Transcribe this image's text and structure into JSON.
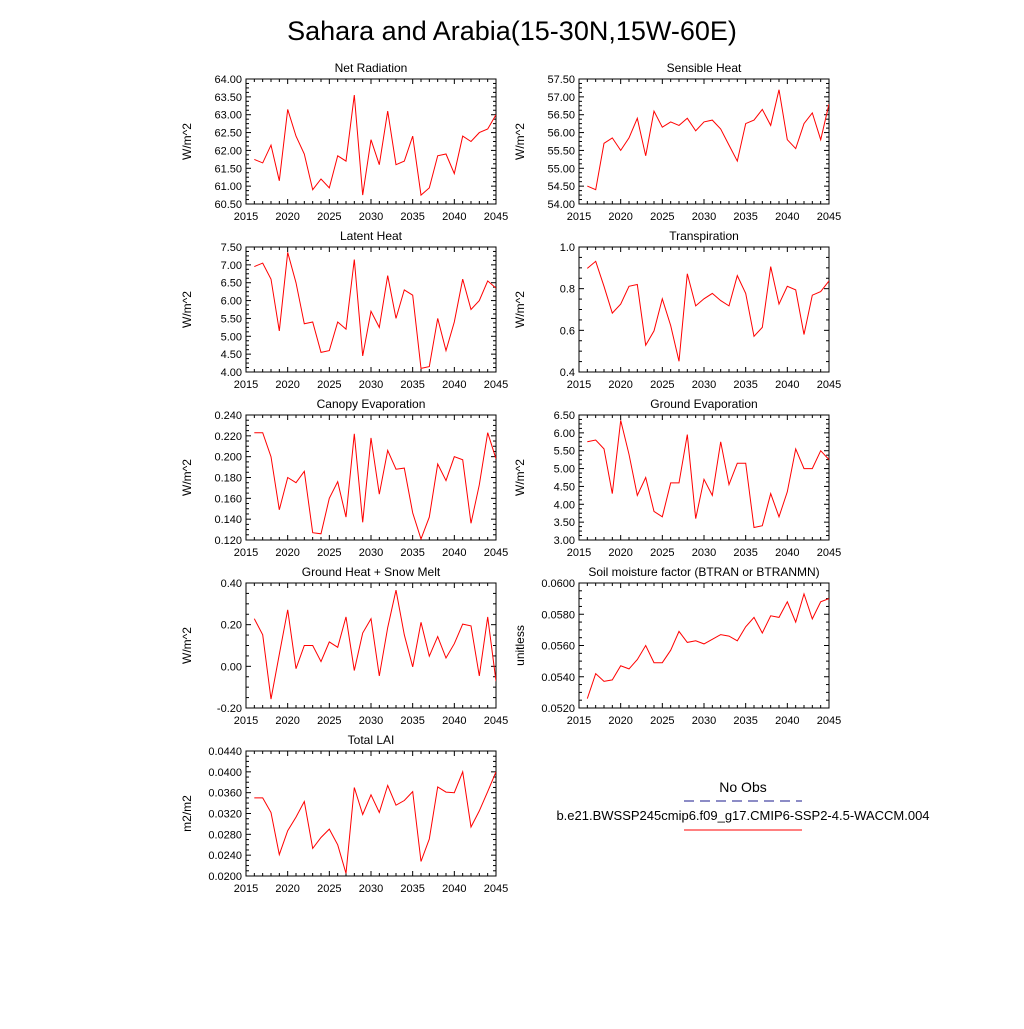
{
  "figure": {
    "title": "Sahara and Arabia(15-30N,15W-60E)",
    "line_color": "#ff0000",
    "obs_color": "#1a1a8c"
  },
  "legend": {
    "obs_label": "No Obs",
    "model_label": "b.e21.BWSSP245cmip6.f09_g17.CMIP6-SSP2-4.5-WACCM.004"
  },
  "chart_data": [
    {
      "type": "line",
      "title": "Net Radiation",
      "ylabel": "W/m^2",
      "xlim": [
        2015,
        2045
      ],
      "ylim": [
        60.5,
        64.0
      ],
      "xticks": [
        2015,
        2020,
        2025,
        2030,
        2035,
        2040,
        2045
      ],
      "yticks": [
        "60.50",
        "61.00",
        "61.50",
        "62.00",
        "62.50",
        "63.00",
        "63.50",
        "64.00"
      ],
      "x": [
        2016,
        2017,
        2018,
        2019,
        2020,
        2021,
        2022,
        2023,
        2024,
        2025,
        2026,
        2027,
        2028,
        2029,
        2030,
        2031,
        2032,
        2033,
        2034,
        2035,
        2036,
        2037,
        2038,
        2039,
        2040,
        2041,
        2042,
        2043,
        2044,
        2045
      ],
      "series": [
        {
          "values": [
            61.75,
            61.65,
            62.15,
            61.15,
            63.15,
            62.4,
            61.9,
            60.9,
            61.2,
            60.95,
            61.85,
            61.7,
            63.55,
            60.75,
            62.3,
            61.6,
            63.1,
            61.6,
            61.7,
            62.4,
            60.75,
            60.95,
            61.85,
            61.9,
            61.35,
            62.4,
            62.25,
            62.5,
            62.6,
            63.0
          ]
        }
      ]
    },
    {
      "type": "line",
      "title": "Sensible Heat",
      "ylabel": "W/m^2",
      "xlim": [
        2015,
        2045
      ],
      "ylim": [
        54.0,
        57.5
      ],
      "xticks": [
        2015,
        2020,
        2025,
        2030,
        2035,
        2040,
        2045
      ],
      "yticks": [
        "54.00",
        "54.50",
        "55.00",
        "55.50",
        "56.00",
        "56.50",
        "57.00",
        "57.50"
      ],
      "x": [
        2016,
        2017,
        2018,
        2019,
        2020,
        2021,
        2022,
        2023,
        2024,
        2025,
        2026,
        2027,
        2028,
        2029,
        2030,
        2031,
        2032,
        2033,
        2034,
        2035,
        2036,
        2037,
        2038,
        2039,
        2040,
        2041,
        2042,
        2043,
        2044,
        2045
      ],
      "series": [
        {
          "values": [
            54.5,
            54.4,
            55.7,
            55.85,
            55.5,
            55.85,
            56.4,
            55.35,
            56.6,
            56.15,
            56.3,
            56.2,
            56.4,
            56.05,
            56.3,
            56.35,
            56.1,
            55.65,
            55.2,
            56.25,
            56.35,
            56.65,
            56.2,
            57.2,
            55.8,
            55.55,
            56.25,
            56.55,
            55.8,
            56.8
          ]
        }
      ]
    },
    {
      "type": "line",
      "title": "Latent Heat",
      "ylabel": "W/m^2",
      "xlim": [
        2015,
        2045
      ],
      "ylim": [
        4.0,
        7.5
      ],
      "xticks": [
        2015,
        2020,
        2025,
        2030,
        2035,
        2040,
        2045
      ],
      "yticks": [
        "4.00",
        "4.50",
        "5.00",
        "5.50",
        "6.00",
        "6.50",
        "7.00",
        "7.50"
      ],
      "x": [
        2016,
        2017,
        2018,
        2019,
        2020,
        2021,
        2022,
        2023,
        2024,
        2025,
        2026,
        2027,
        2028,
        2029,
        2030,
        2031,
        2032,
        2033,
        2034,
        2035,
        2036,
        2037,
        2038,
        2039,
        2040,
        2041,
        2042,
        2043,
        2044,
        2045
      ],
      "series": [
        {
          "values": [
            6.95,
            7.05,
            6.6,
            5.15,
            7.35,
            6.5,
            5.35,
            5.4,
            4.55,
            4.6,
            5.4,
            5.2,
            7.15,
            4.45,
            5.7,
            5.25,
            6.7,
            5.5,
            6.3,
            6.15,
            4.1,
            4.15,
            5.5,
            4.6,
            5.4,
            6.6,
            5.75,
            6.0,
            6.55,
            6.35
          ]
        }
      ]
    },
    {
      "type": "line",
      "title": "Transpiration",
      "ylabel": "W/m^2",
      "xlim": [
        2015,
        2045
      ],
      "ylim": [
        0.4,
        1.1
      ],
      "xticks": [
        2015,
        2020,
        2025,
        2030,
        2035,
        2040,
        2045
      ],
      "yticks": [
        "0.4",
        "0.6",
        "0.8",
        "1.0"
      ],
      "x": [
        2016,
        2017,
        2018,
        2019,
        2020,
        2021,
        2022,
        2023,
        2024,
        2025,
        2026,
        2027,
        2028,
        2029,
        2030,
        2031,
        2032,
        2033,
        2034,
        2035,
        2036,
        2037,
        2038,
        2039,
        2040,
        2041,
        2042,
        2043,
        2044,
        2045
      ],
      "series": [
        {
          "values": [
            0.98,
            1.02,
            0.88,
            0.73,
            0.78,
            0.88,
            0.89,
            0.55,
            0.63,
            0.81,
            0.66,
            0.46,
            0.95,
            0.77,
            0.81,
            0.84,
            0.8,
            0.77,
            0.94,
            0.84,
            0.6,
            0.65,
            0.99,
            0.78,
            0.88,
            0.86,
            0.61,
            0.83,
            0.85,
            0.91
          ]
        }
      ]
    },
    {
      "type": "line",
      "title": "Canopy Evaporation",
      "ylabel": "W/m^2",
      "xlim": [
        2015,
        2045
      ],
      "ylim": [
        0.12,
        0.24
      ],
      "xticks": [
        2015,
        2020,
        2025,
        2030,
        2035,
        2040,
        2045
      ],
      "yticks": [
        "0.120",
        "0.140",
        "0.160",
        "0.180",
        "0.200",
        "0.220",
        "0.240"
      ],
      "x": [
        2016,
        2017,
        2018,
        2019,
        2020,
        2021,
        2022,
        2023,
        2024,
        2025,
        2026,
        2027,
        2028,
        2029,
        2030,
        2031,
        2032,
        2033,
        2034,
        2035,
        2036,
        2037,
        2038,
        2039,
        2040,
        2041,
        2042,
        2043,
        2044,
        2045
      ],
      "series": [
        {
          "values": [
            0.223,
            0.223,
            0.2,
            0.149,
            0.18,
            0.175,
            0.186,
            0.127,
            0.126,
            0.16,
            0.176,
            0.142,
            0.222,
            0.137,
            0.218,
            0.164,
            0.206,
            0.188,
            0.189,
            0.146,
            0.121,
            0.142,
            0.193,
            0.177,
            0.2,
            0.197,
            0.136,
            0.173,
            0.223,
            0.198
          ]
        }
      ]
    },
    {
      "type": "line",
      "title": "Ground Evaporation",
      "ylabel": "W/m^2",
      "xlim": [
        2015,
        2045
      ],
      "ylim": [
        3.0,
        6.5
      ],
      "xticks": [
        2015,
        2020,
        2025,
        2030,
        2035,
        2040,
        2045
      ],
      "yticks": [
        "3.00",
        "3.50",
        "4.00",
        "4.50",
        "5.00",
        "5.50",
        "6.00",
        "6.50"
      ],
      "x": [
        2016,
        2017,
        2018,
        2019,
        2020,
        2021,
        2022,
        2023,
        2024,
        2025,
        2026,
        2027,
        2028,
        2029,
        2030,
        2031,
        2032,
        2033,
        2034,
        2035,
        2036,
        2037,
        2038,
        2039,
        2040,
        2041,
        2042,
        2043,
        2044,
        2045
      ],
      "series": [
        {
          "values": [
            5.75,
            5.8,
            5.55,
            4.3,
            6.35,
            5.4,
            4.25,
            4.75,
            3.8,
            3.65,
            4.6,
            4.6,
            5.95,
            3.6,
            4.7,
            4.25,
            5.75,
            4.55,
            5.15,
            5.15,
            3.35,
            3.4,
            4.3,
            3.65,
            4.35,
            5.55,
            5.0,
            5.0,
            5.5,
            5.25
          ]
        }
      ]
    },
    {
      "type": "line",
      "title": "Ground Heat + Snow Melt",
      "ylabel": "W/m^2",
      "xlim": [
        2015,
        2045
      ],
      "ylim": [
        -0.2,
        0.5
      ],
      "xticks": [
        2015,
        2020,
        2025,
        2030,
        2035,
        2040,
        2045
      ],
      "yticks": [
        "-0.20",
        "0.00",
        "0.20",
        "0.40"
      ],
      "x": [
        2016,
        2017,
        2018,
        2019,
        2020,
        2021,
        2022,
        2023,
        2024,
        2025,
        2026,
        2027,
        2028,
        2029,
        2030,
        2031,
        2032,
        2033,
        2034,
        2035,
        2036,
        2037,
        2038,
        2039,
        2040,
        2041,
        2042,
        2043,
        2044,
        2045
      ],
      "series": [
        {
          "values": [
            0.3,
            0.21,
            -0.15,
            0.1,
            0.35,
            0.02,
            0.15,
            0.15,
            0.06,
            0.17,
            0.14,
            0.31,
            0.01,
            0.22,
            0.3,
            -0.02,
            0.25,
            0.46,
            0.21,
            0.03,
            0.28,
            0.09,
            0.2,
            0.08,
            0.16,
            0.27,
            0.26,
            -0.02,
            0.31,
            -0.05
          ]
        }
      ]
    },
    {
      "type": "line",
      "title": "Soil moisture factor (BTRAN or BTRANMN)",
      "ylabel": "unitless",
      "xlim": [
        2015,
        2045
      ],
      "ylim": [
        0.052,
        0.06
      ],
      "xticks": [
        2015,
        2020,
        2025,
        2030,
        2035,
        2040,
        2045
      ],
      "yticks": [
        "0.0520",
        "0.0540",
        "0.0560",
        "0.0580",
        "0.0600"
      ],
      "x": [
        2016,
        2017,
        2018,
        2019,
        2020,
        2021,
        2022,
        2023,
        2024,
        2025,
        2026,
        2027,
        2028,
        2029,
        2030,
        2031,
        2032,
        2033,
        2034,
        2035,
        2036,
        2037,
        2038,
        2039,
        2040,
        2041,
        2042,
        2043,
        2044,
        2045
      ],
      "series": [
        {
          "values": [
            0.0526,
            0.0542,
            0.0537,
            0.0538,
            0.0547,
            0.0545,
            0.0551,
            0.056,
            0.0549,
            0.0549,
            0.0557,
            0.0569,
            0.0562,
            0.0563,
            0.0561,
            0.0564,
            0.0567,
            0.0566,
            0.0563,
            0.0572,
            0.0578,
            0.0568,
            0.0579,
            0.0578,
            0.0588,
            0.0575,
            0.0593,
            0.0577,
            0.0588,
            0.059
          ]
        }
      ]
    },
    {
      "type": "line",
      "title": "Total LAI",
      "ylabel": "m2/m2",
      "xlim": [
        2015,
        2045
      ],
      "ylim": [
        0.02,
        0.044
      ],
      "xticks": [
        2015,
        2020,
        2025,
        2030,
        2035,
        2040,
        2045
      ],
      "yticks": [
        "0.0200",
        "0.0240",
        "0.0280",
        "0.0320",
        "0.0360",
        "0.0400",
        "0.0440"
      ],
      "x": [
        2016,
        2017,
        2018,
        2019,
        2020,
        2021,
        2022,
        2023,
        2024,
        2025,
        2026,
        2027,
        2028,
        2029,
        2030,
        2031,
        2032,
        2033,
        2034,
        2035,
        2036,
        2037,
        2038,
        2039,
        2040,
        2041,
        2042,
        2043,
        2044,
        2045
      ],
      "series": [
        {
          "values": [
            0.035,
            0.035,
            0.0322,
            0.0241,
            0.0287,
            0.0313,
            0.0343,
            0.0253,
            0.0274,
            0.029,
            0.026,
            0.0205,
            0.037,
            0.0318,
            0.0356,
            0.0322,
            0.0374,
            0.0336,
            0.0345,
            0.0362,
            0.0228,
            0.0271,
            0.0371,
            0.0361,
            0.036,
            0.04,
            0.0294,
            0.0325,
            0.0362,
            0.04
          ]
        }
      ]
    }
  ]
}
